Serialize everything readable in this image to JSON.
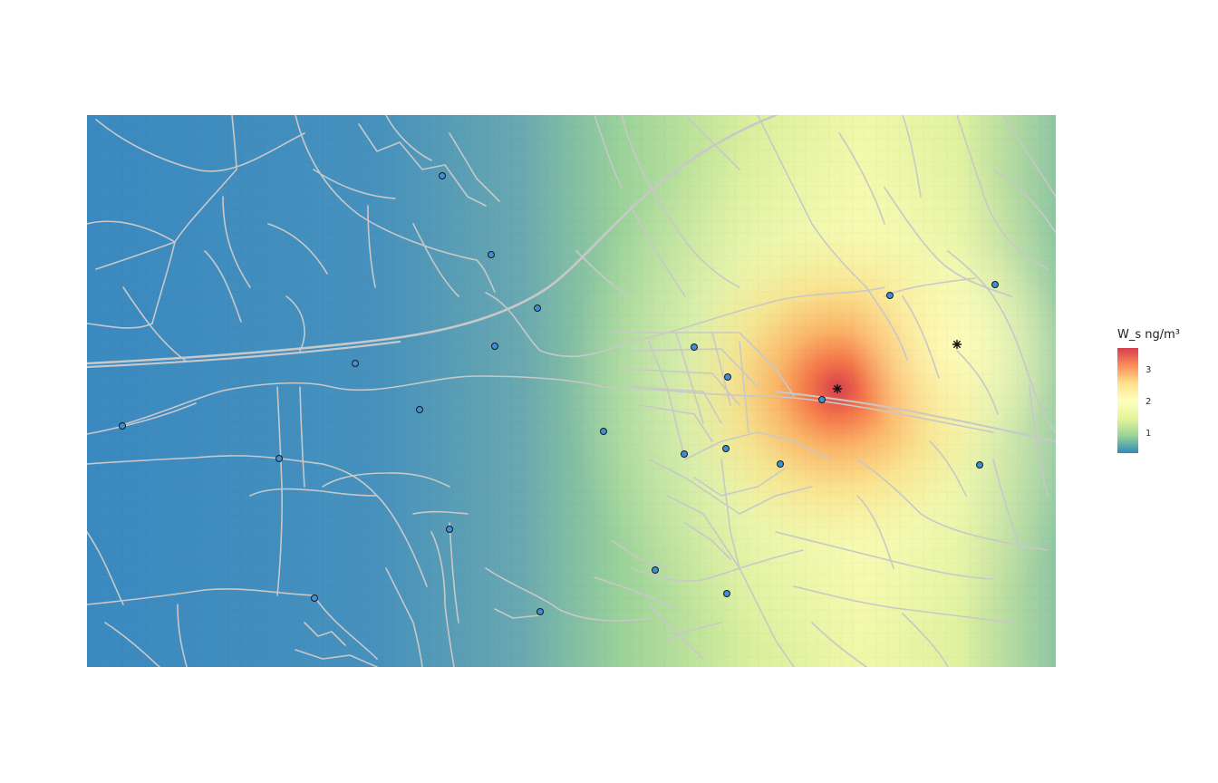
{
  "map": {
    "basemap": "street-network",
    "fill_variable": "W_s",
    "palette": [
      "#3288bd",
      "#99d594",
      "#e6f598",
      "#ffffbf",
      "#fee08b",
      "#fc8d59",
      "#d53e4f"
    ],
    "road_color": "#c8c8c8",
    "site_marker_color": "#3d8fd6",
    "site_marker_count": 24,
    "source_marker_icon": "asterisk-icon",
    "source_marker_count": 2
  },
  "legend": {
    "title": "W_s ng/m³",
    "breaks": [
      {
        "label": "1",
        "value": 1
      },
      {
        "label": "2",
        "value": 2
      },
      {
        "label": "3",
        "value": 3
      }
    ],
    "min": 0.4,
    "max": 3.7
  }
}
